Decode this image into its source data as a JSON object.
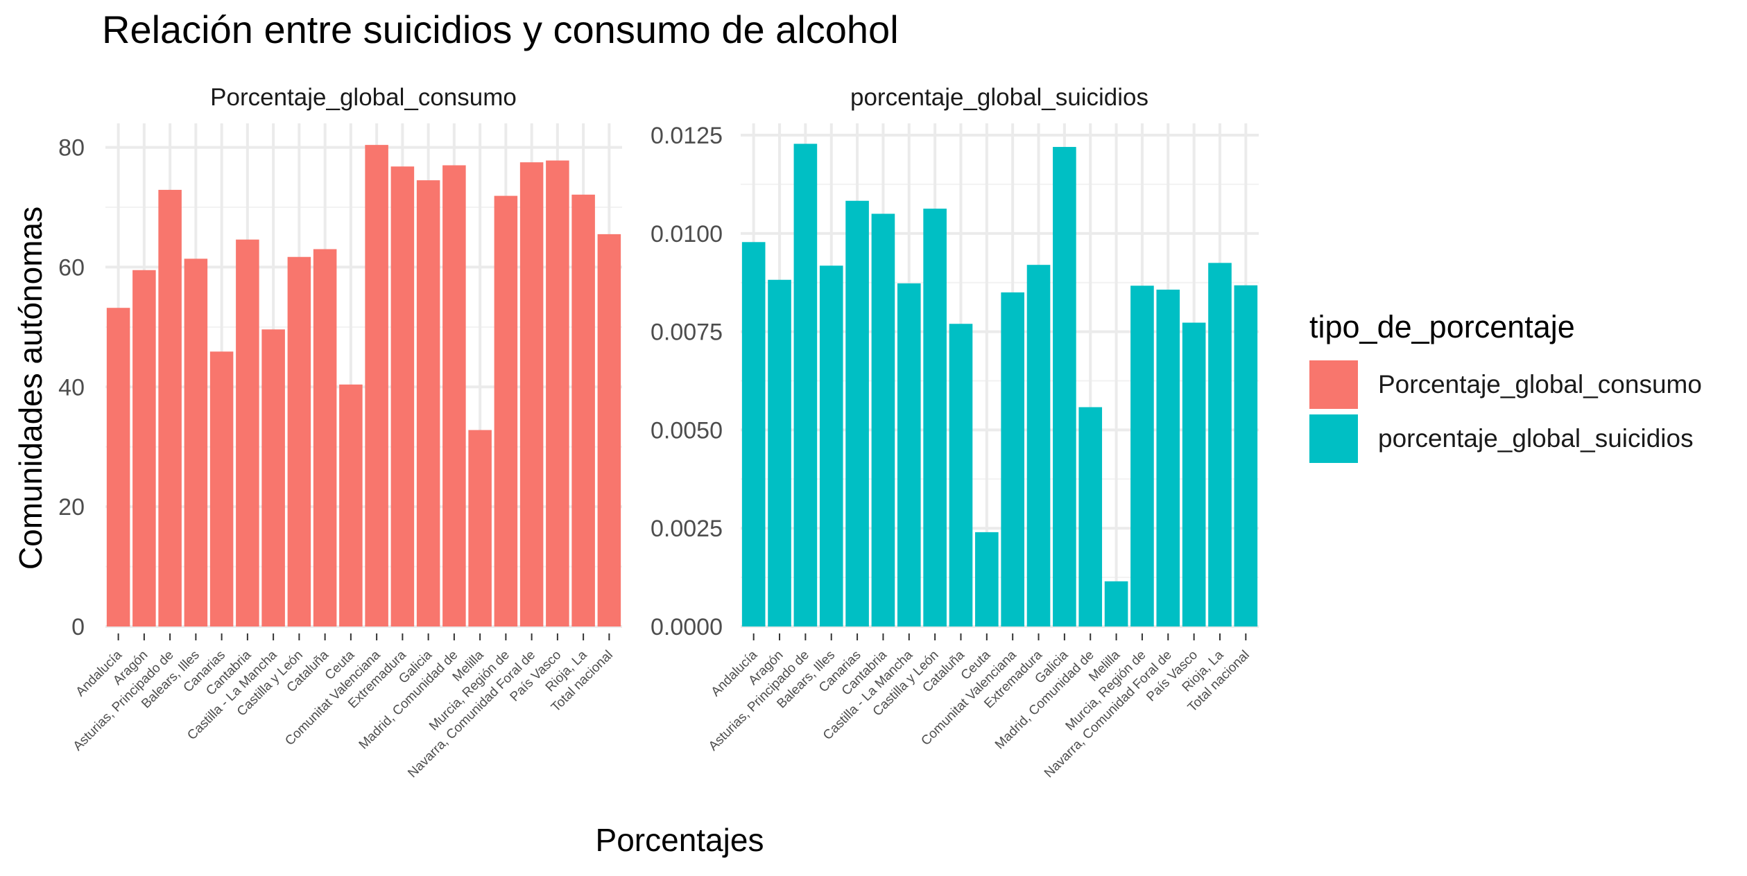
{
  "title": "Relación entre suicidios y consumo de alcohol",
  "xlabel": "Porcentajes",
  "ylabel": "Comunidades autónomas",
  "legend": {
    "title": "tipo_de_porcentaje",
    "placement": "right",
    "items": [
      {
        "label": "Porcentaje_global_consumo",
        "color": "#F8766D"
      },
      {
        "label": "porcentaje_global_suicidios",
        "color": "#00BFC4"
      }
    ]
  },
  "chart_data": [
    {
      "type": "bar",
      "facet": "Porcentaje_global_consumo",
      "color": "#F8766D",
      "categories": [
        "Andalucía",
        "Aragón",
        "Asturias, Principado de",
        "Balears, Illes",
        "Canarias",
        "Cantabria",
        "Castilla - La Mancha",
        "Castilla y León",
        "Cataluña",
        "Ceuta",
        "Comunitat Valenciana",
        "Extremadura",
        "Galicia",
        "Madrid, Comunidad de",
        "Melilla",
        "Murcia, Región de",
        "Navarra, Comunidad Foral de",
        "País Vasco",
        "Rioja, La",
        "Total nacional"
      ],
      "values": [
        53.2,
        59.5,
        72.9,
        61.4,
        45.9,
        64.6,
        49.6,
        61.7,
        63.0,
        40.4,
        80.4,
        76.8,
        74.5,
        77.0,
        32.8,
        71.9,
        77.5,
        77.8,
        72.1,
        65.5
      ],
      "ylim": [
        0,
        84
      ],
      "yticks": [
        0,
        20,
        40,
        60,
        80
      ],
      "ytick_labels": [
        "0",
        "20",
        "40",
        "60",
        "80"
      ],
      "grid": true
    },
    {
      "type": "bar",
      "facet": "porcentaje_global_suicidios",
      "color": "#00BFC4",
      "categories": [
        "Andalucía",
        "Aragón",
        "Asturias, Principado de",
        "Balears, Illes",
        "Canarias",
        "Cantabria",
        "Castilla - La Mancha",
        "Castilla y León",
        "Cataluña",
        "Ceuta",
        "Comunitat Valenciana",
        "Extremadura",
        "Galicia",
        "Madrid, Comunidad de",
        "Melilla",
        "Murcia, Región de",
        "Navarra, Comunidad Foral de",
        "País Vasco",
        "Rioja, La",
        "Total nacional"
      ],
      "values": [
        0.00978,
        0.00882,
        0.01228,
        0.00918,
        0.01083,
        0.0105,
        0.00873,
        0.01063,
        0.0077,
        0.0024,
        0.0085,
        0.0092,
        0.0122,
        0.00558,
        0.00115,
        0.00867,
        0.00857,
        0.00773,
        0.00925,
        0.00868
      ],
      "ylim": [
        0,
        0.0128
      ],
      "yticks": [
        0,
        0.0025,
        0.005,
        0.0075,
        0.01,
        0.0125
      ],
      "ytick_labels": [
        "0.0000",
        "0.0025",
        "0.0050",
        "0.0075",
        "0.0100",
        "0.0125"
      ],
      "grid": true
    }
  ]
}
